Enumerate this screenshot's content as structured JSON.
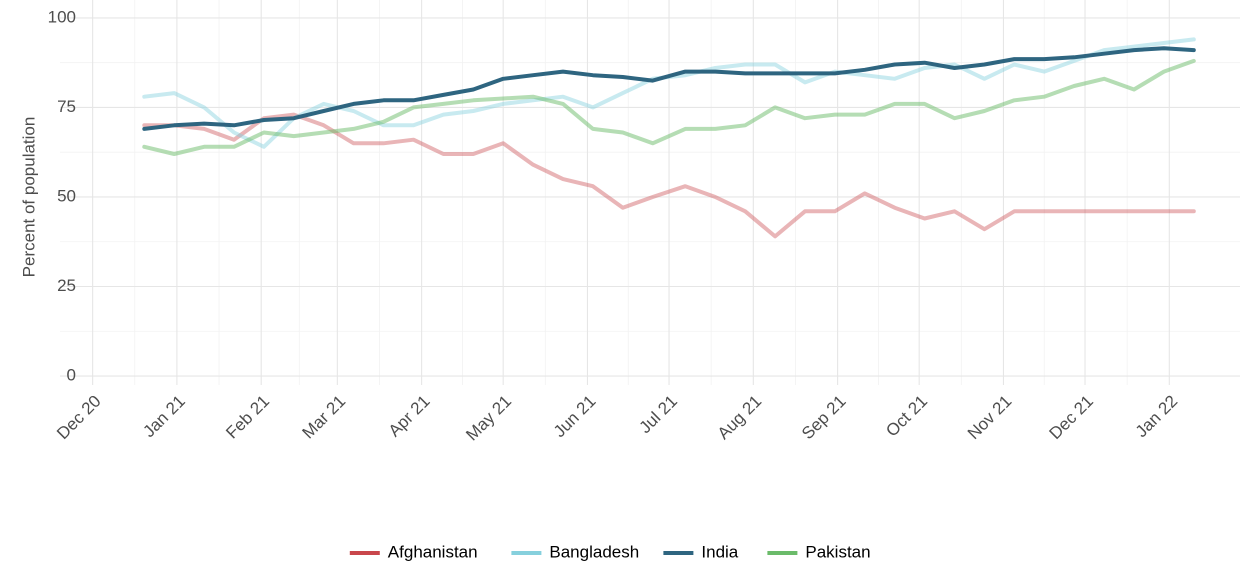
{
  "chart_data": {
    "type": "line",
    "y_label": "Percent of population",
    "xlim": [
      -12,
      422
    ],
    "xticks": [
      {
        "value": 0,
        "label": "Dec 20"
      },
      {
        "value": 31,
        "label": "Jan 21"
      },
      {
        "value": 62,
        "label": "Feb 21"
      },
      {
        "value": 90,
        "label": "Mar 21"
      },
      {
        "value": 121,
        "label": "Apr 21"
      },
      {
        "value": 151,
        "label": "May 21"
      },
      {
        "value": 182,
        "label": "Jun 21"
      },
      {
        "value": 212,
        "label": "Jul 21"
      },
      {
        "value": 243,
        "label": "Aug 21"
      },
      {
        "value": 274,
        "label": "Sep 21"
      },
      {
        "value": 304,
        "label": "Oct 21"
      },
      {
        "value": 335,
        "label": "Nov 21"
      },
      {
        "value": 365,
        "label": "Dec 21"
      },
      {
        "value": 396,
        "label": "Jan 22"
      }
    ],
    "ylim": [
      -2.5,
      105
    ],
    "yticks": [
      0,
      25,
      50,
      75,
      100
    ],
    "grid": true,
    "legend": "bottom",
    "x": [
      19,
      30,
      41,
      52,
      63,
      74,
      85,
      96,
      107,
      118,
      129,
      140,
      151,
      162,
      173,
      184,
      195,
      206,
      218,
      229,
      240,
      251,
      262,
      273,
      284,
      295,
      306,
      317,
      328,
      339,
      350,
      361,
      372,
      383,
      394,
      405
    ],
    "series": [
      {
        "name": "Afghanistan",
        "color": "#c9474c",
        "values": [
          70,
          70,
          69,
          66,
          72,
          73,
          70,
          65,
          65,
          66,
          62,
          62,
          65,
          59,
          55,
          53,
          47,
          50,
          53,
          50,
          46,
          39,
          46,
          46,
          51,
          47,
          44,
          46,
          41,
          46,
          46,
          46,
          46,
          46,
          46,
          46
        ]
      },
      {
        "name": "Bangladesh",
        "color": "#86d0dd",
        "values": [
          78,
          79,
          75,
          68,
          64,
          72,
          76,
          74,
          70,
          70,
          73,
          74,
          76,
          77,
          78,
          75,
          79,
          83,
          84,
          86,
          87,
          87,
          82,
          85,
          84,
          83,
          86,
          87,
          83,
          87,
          85,
          88,
          91,
          92,
          93,
          94
        ]
      },
      {
        "name": "India",
        "color": "#2e6580",
        "values": [
          69,
          70,
          70.5,
          70,
          71.5,
          72,
          74,
          76,
          77,
          77,
          78.5,
          80,
          83,
          84,
          85,
          84,
          83.5,
          82.5,
          85,
          85,
          84.5,
          84.5,
          84.5,
          84.5,
          85.5,
          87,
          87.5,
          86,
          87,
          88.5,
          88.5,
          89,
          90,
          91,
          91.5,
          91
        ]
      },
      {
        "name": "Pakistan",
        "color": "#6bbb6a",
        "values": [
          64,
          62,
          64,
          64,
          68,
          67,
          68,
          69,
          71,
          75,
          76,
          77,
          77.5,
          78,
          76,
          69,
          68,
          65,
          69,
          69,
          70,
          75,
          72,
          73,
          73,
          76,
          76,
          72,
          74,
          77,
          78,
          81,
          83,
          80,
          85,
          88
        ]
      }
    ]
  }
}
